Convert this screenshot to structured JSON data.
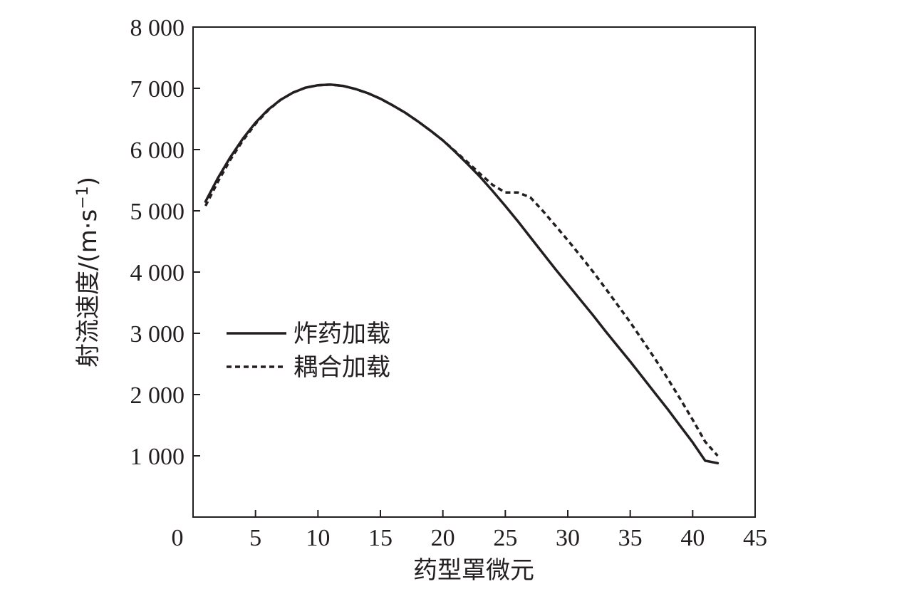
{
  "chart_data": {
    "type": "line",
    "title": "",
    "xlabel": "药型罩微元",
    "ylabel_text": "射流速度/(m·s",
    "ylabel_sup": "−1",
    "ylabel_close": ")",
    "xlim": [
      0,
      45
    ],
    "ylim": [
      0,
      8000
    ],
    "x_ticks": [
      0,
      5,
      10,
      15,
      20,
      25,
      30,
      35,
      40,
      45
    ],
    "x_tick_labels": [
      "0",
      "5",
      "10",
      "15",
      "20",
      "25",
      "30",
      "35",
      "40",
      "45"
    ],
    "y_ticks": [
      1000,
      2000,
      3000,
      4000,
      5000,
      6000,
      7000,
      8000
    ],
    "y_tick_labels": [
      "1 000",
      "2 000",
      "3 000",
      "4 000",
      "5 000",
      "6 000",
      "7 000",
      "8 000"
    ],
    "grid": false,
    "legend_position": "center-left",
    "colors": {
      "line": "#231f20"
    },
    "series": [
      {
        "name": "炸药加载",
        "style": "solid",
        "x": [
          1,
          2,
          3,
          4,
          5,
          6,
          7,
          8,
          9,
          10,
          11,
          12,
          13,
          14,
          15,
          16,
          17,
          18,
          19,
          20,
          21,
          22,
          23,
          24,
          25,
          26,
          27,
          28,
          29,
          30,
          31,
          32,
          33,
          34,
          35,
          36,
          37,
          38,
          39,
          40,
          41,
          42
        ],
        "values": [
          5150,
          5540,
          5880,
          6180,
          6440,
          6650,
          6810,
          6930,
          7010,
          7050,
          7060,
          7040,
          6990,
          6920,
          6830,
          6720,
          6600,
          6460,
          6310,
          6150,
          5960,
          5760,
          5550,
          5320,
          5080,
          4830,
          4570,
          4310,
          4050,
          3800,
          3550,
          3300,
          3040,
          2790,
          2540,
          2280,
          2020,
          1760,
          1490,
          1220,
          920,
          880
        ]
      },
      {
        "name": "耦合加载",
        "style": "dashed",
        "x": [
          1,
          2,
          3,
          4,
          5,
          6,
          7,
          8,
          9,
          10,
          11,
          12,
          13,
          14,
          15,
          16,
          17,
          18,
          19,
          20,
          21,
          22,
          23,
          24,
          25,
          26,
          27,
          28,
          29,
          30,
          31,
          32,
          33,
          34,
          35,
          36,
          37,
          38,
          39,
          40,
          41,
          42
        ],
        "values": [
          5080,
          5480,
          5840,
          6150,
          6420,
          6640,
          6810,
          6930,
          7010,
          7050,
          7060,
          7040,
          6990,
          6920,
          6830,
          6720,
          6600,
          6460,
          6310,
          6150,
          5970,
          5790,
          5600,
          5420,
          5300,
          5300,
          5220,
          5000,
          4760,
          4520,
          4270,
          4010,
          3740,
          3460,
          3180,
          2880,
          2580,
          2260,
          1930,
          1590,
          1230,
          1000
        ]
      }
    ]
  }
}
